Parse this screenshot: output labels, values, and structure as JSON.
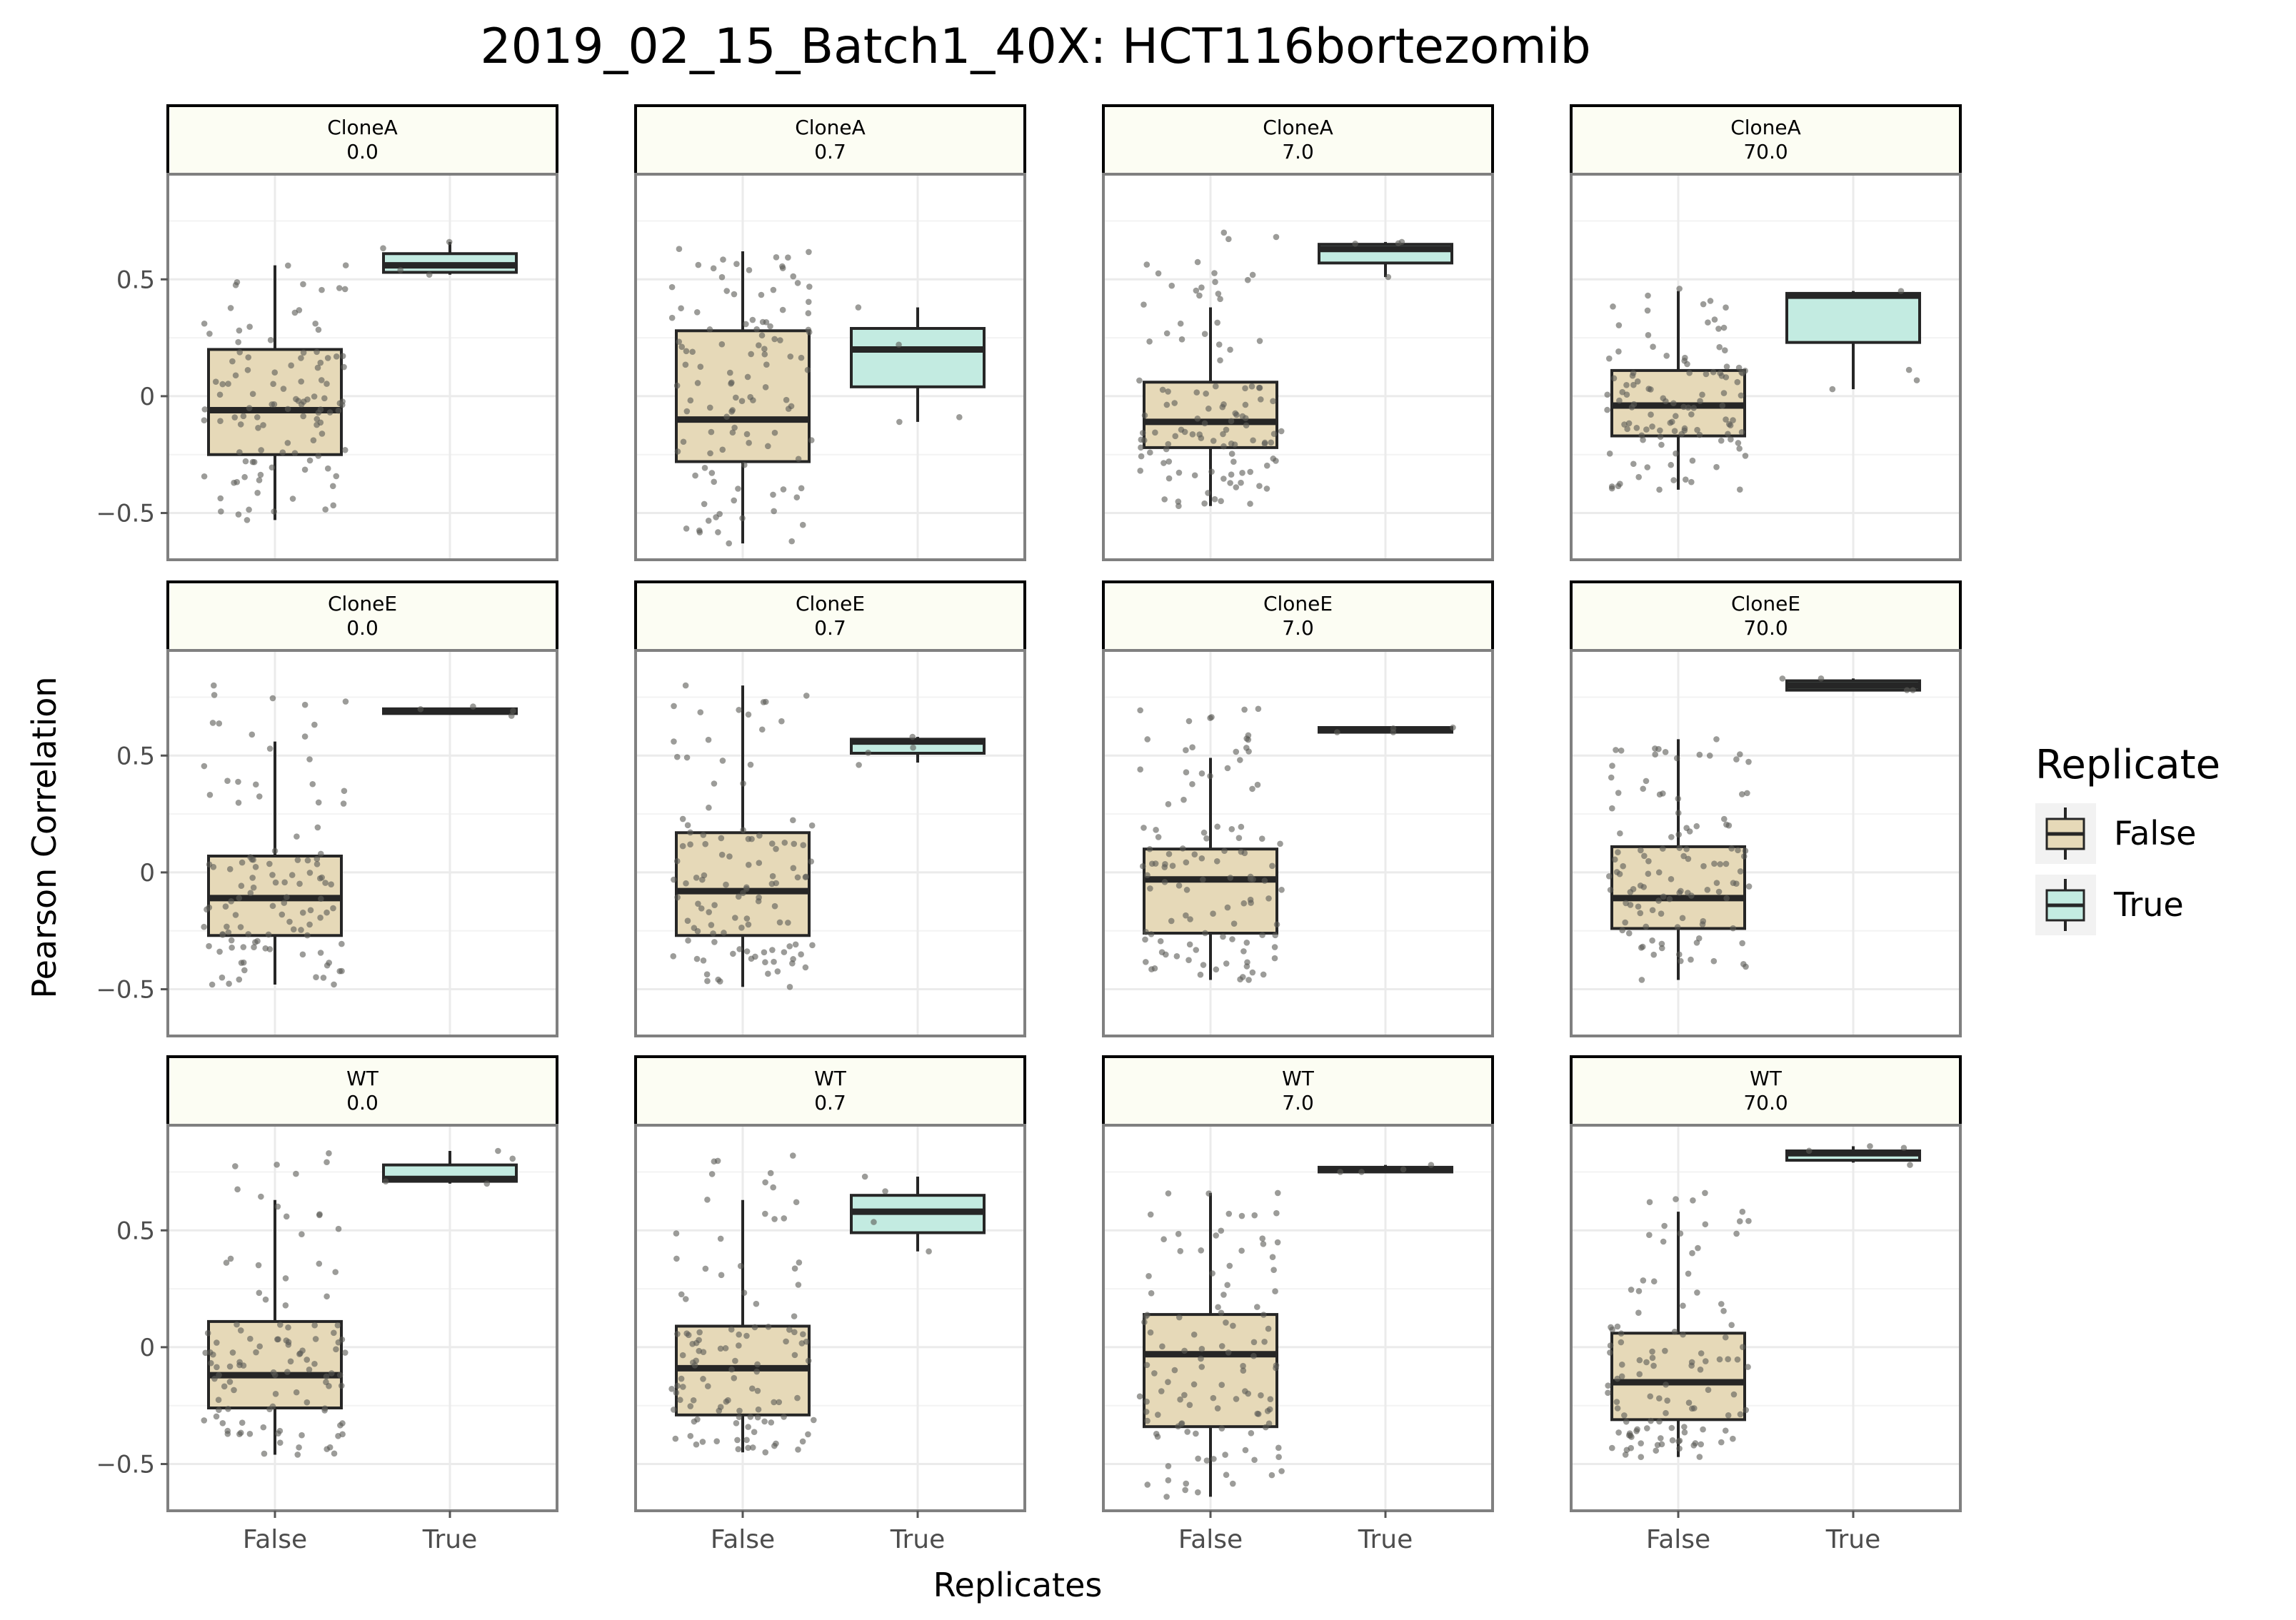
{
  "chart_data": {
    "type": "boxplot",
    "title": "2019_02_15_Batch1_40X: HCT116bortezomib",
    "xlabel": "Replicates",
    "ylabel": "Pearson Correlation",
    "x_categories": [
      "False",
      "True"
    ],
    "y_ticks": [
      {
        "value": 0.5,
        "label": "0.5"
      },
      {
        "value": 0,
        "label": "0"
      },
      {
        "value": -0.5,
        "label": "−0.5"
      }
    ],
    "ylim": [
      -0.7,
      0.95
    ],
    "grid": true,
    "legend": {
      "title": "Replicate",
      "placement": "right",
      "entries": [
        {
          "label": "False",
          "color": "#e6d9b8"
        },
        {
          "label": "True",
          "color": "#c3ebe1"
        }
      ]
    },
    "colors": {
      "strip_fill": "#fcfdf3",
      "panel_border": "#808080",
      "grid": "#ebebeb",
      "box_line": "#262626",
      "point": "#5a5a55"
    },
    "rows": [
      "CloneA",
      "CloneE",
      "WT"
    ],
    "columns": [
      "0.0",
      "0.7",
      "7.0",
      "70.0"
    ],
    "panels": [
      {
        "clone": "CloneA",
        "dose": "0.0",
        "False": {
          "min": -0.53,
          "q1": -0.25,
          "median": -0.06,
          "q3": 0.2,
          "max": 0.56,
          "n": 110,
          "pmin": -0.53,
          "pmax": 0.56
        },
        "True": {
          "min": 0.52,
          "q1": 0.53,
          "median": 0.56,
          "q3": 0.61,
          "max": 0.66,
          "n": 4,
          "pmin": 0.52,
          "pmax": 0.66
        }
      },
      {
        "clone": "CloneA",
        "dose": "0.7",
        "False": {
          "min": -0.63,
          "q1": -0.28,
          "median": -0.1,
          "q3": 0.28,
          "max": 0.62,
          "n": 110,
          "pmin": -0.63,
          "pmax": 0.63
        },
        "True": {
          "min": -0.11,
          "q1": 0.04,
          "median": 0.2,
          "q3": 0.29,
          "max": 0.38,
          "n": 4,
          "pmin": -0.11,
          "pmax": 0.38
        }
      },
      {
        "clone": "CloneA",
        "dose": "7.0",
        "False": {
          "min": -0.47,
          "q1": -0.22,
          "median": -0.11,
          "q3": 0.06,
          "max": 0.38,
          "n": 110,
          "pmin": -0.47,
          "pmax": 0.7
        },
        "True": {
          "min": 0.51,
          "q1": 0.57,
          "median": 0.63,
          "q3": 0.65,
          "max": 0.66,
          "n": 4,
          "pmin": 0.51,
          "pmax": 0.66
        }
      },
      {
        "clone": "CloneA",
        "dose": "70.0",
        "False": {
          "min": -0.4,
          "q1": -0.17,
          "median": -0.04,
          "q3": 0.11,
          "max": 0.45,
          "n": 110,
          "pmin": -0.4,
          "pmax": 0.46
        },
        "True": {
          "min": 0.03,
          "q1": 0.23,
          "median": 0.43,
          "q3": 0.44,
          "max": 0.45,
          "n": 4,
          "pmin": 0.03,
          "pmax": 0.45
        }
      },
      {
        "clone": "CloneE",
        "dose": "0.0",
        "False": {
          "min": -0.48,
          "q1": -0.27,
          "median": -0.11,
          "q3": 0.07,
          "max": 0.56,
          "n": 110,
          "pmin": -0.48,
          "pmax": 0.8
        },
        "True": {
          "min": 0.68,
          "q1": 0.68,
          "median": 0.69,
          "q3": 0.7,
          "max": 0.7,
          "n": 4,
          "pmin": 0.67,
          "pmax": 0.71
        }
      },
      {
        "clone": "CloneE",
        "dose": "0.7",
        "False": {
          "min": -0.49,
          "q1": -0.27,
          "median": -0.08,
          "q3": 0.17,
          "max": 0.8,
          "n": 110,
          "pmin": -0.49,
          "pmax": 0.8
        },
        "True": {
          "min": 0.47,
          "q1": 0.51,
          "median": 0.56,
          "q3": 0.57,
          "max": 0.58,
          "n": 4,
          "pmin": 0.46,
          "pmax": 0.58
        }
      },
      {
        "clone": "CloneE",
        "dose": "7.0",
        "False": {
          "min": -0.46,
          "q1": -0.26,
          "median": -0.03,
          "q3": 0.1,
          "max": 0.49,
          "n": 110,
          "pmin": -0.46,
          "pmax": 0.7
        },
        "True": {
          "min": 0.6,
          "q1": 0.6,
          "median": 0.61,
          "q3": 0.62,
          "max": 0.62,
          "n": 4,
          "pmin": 0.6,
          "pmax": 0.62
        }
      },
      {
        "clone": "CloneE",
        "dose": "70.0",
        "False": {
          "min": -0.46,
          "q1": -0.24,
          "median": -0.11,
          "q3": 0.11,
          "max": 0.57,
          "n": 110,
          "pmin": -0.46,
          "pmax": 0.57
        },
        "True": {
          "min": 0.78,
          "q1": 0.78,
          "median": 0.8,
          "q3": 0.82,
          "max": 0.83,
          "n": 4,
          "pmin": 0.78,
          "pmax": 0.83
        }
      },
      {
        "clone": "WT",
        "dose": "0.0",
        "False": {
          "min": -0.46,
          "q1": -0.26,
          "median": -0.12,
          "q3": 0.11,
          "max": 0.63,
          "n": 110,
          "pmin": -0.46,
          "pmax": 0.83
        },
        "True": {
          "min": 0.7,
          "q1": 0.71,
          "median": 0.72,
          "q3": 0.78,
          "max": 0.84,
          "n": 4,
          "pmin": 0.7,
          "pmax": 0.84
        }
      },
      {
        "clone": "WT",
        "dose": "0.7",
        "False": {
          "min": -0.45,
          "q1": -0.29,
          "median": -0.09,
          "q3": 0.09,
          "max": 0.63,
          "n": 110,
          "pmin": -0.45,
          "pmax": 0.82
        },
        "True": {
          "min": 0.41,
          "q1": 0.49,
          "median": 0.58,
          "q3": 0.65,
          "max": 0.73,
          "n": 4,
          "pmin": 0.41,
          "pmax": 0.73
        }
      },
      {
        "clone": "WT",
        "dose": "7.0",
        "False": {
          "min": -0.64,
          "q1": -0.34,
          "median": -0.03,
          "q3": 0.14,
          "max": 0.66,
          "n": 110,
          "pmin": -0.64,
          "pmax": 0.66
        },
        "True": {
          "min": 0.75,
          "q1": 0.75,
          "median": 0.76,
          "q3": 0.77,
          "max": 0.78,
          "n": 4,
          "pmin": 0.75,
          "pmax": 0.78
        }
      },
      {
        "clone": "WT",
        "dose": "70.0",
        "False": {
          "min": -0.47,
          "q1": -0.31,
          "median": -0.15,
          "q3": 0.06,
          "max": 0.58,
          "n": 110,
          "pmin": -0.47,
          "pmax": 0.66
        },
        "True": {
          "min": 0.79,
          "q1": 0.8,
          "median": 0.83,
          "q3": 0.84,
          "max": 0.86,
          "n": 4,
          "pmin": 0.78,
          "pmax": 0.86
        }
      }
    ]
  }
}
